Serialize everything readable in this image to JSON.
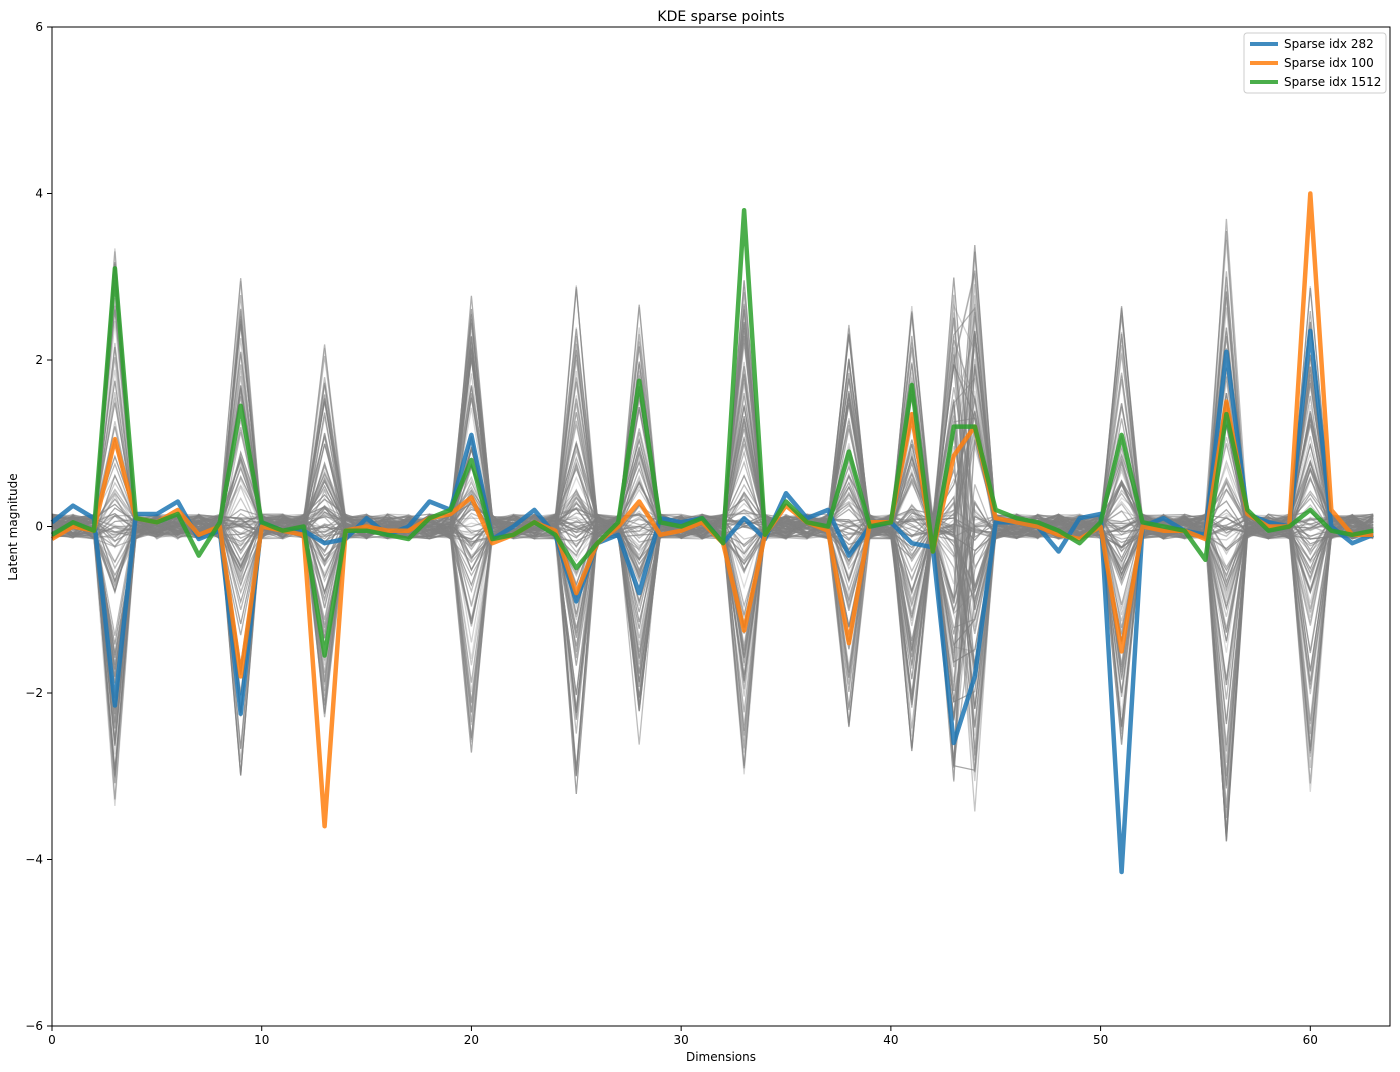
{
  "chart_data": {
    "type": "line",
    "title": "KDE sparse points",
    "xlabel": "Dimensions",
    "ylabel": "Latent magnitude",
    "xlim": [
      0,
      63.8
    ],
    "ylim": [
      -6,
      6
    ],
    "x_ticks": [
      0,
      10,
      20,
      30,
      40,
      50,
      60
    ],
    "y_ticks": [
      -6,
      -4,
      -2,
      0,
      2,
      4,
      6
    ],
    "grid": false,
    "legend_position": "top-right",
    "background_color": "#808080",
    "background_spike_dims": [
      3,
      9,
      13,
      20,
      25,
      28,
      33,
      38,
      41,
      43,
      44,
      51,
      56,
      60
    ],
    "background_spike_scales": [
      3.4,
      3.0,
      2.3,
      2.8,
      3.3,
      2.7,
      3.0,
      2.5,
      2.7,
      3.1,
      3.5,
      2.7,
      3.8,
      3.2
    ],
    "series": [
      {
        "name": "Sparse idx 282",
        "color": "#1f77b4",
        "values": [
          0.05,
          0.25,
          0.1,
          -2.15,
          0.15,
          0.15,
          0.3,
          -0.15,
          -0.05,
          -2.25,
          0.05,
          -0.05,
          -0.05,
          -0.2,
          -0.15,
          0.1,
          -0.1,
          0.0,
          0.3,
          0.2,
          1.1,
          -0.15,
          0.0,
          0.2,
          -0.1,
          -0.9,
          -0.2,
          -0.1,
          -0.8,
          0.1,
          0.05,
          0.1,
          -0.2,
          0.1,
          -0.15,
          0.4,
          0.1,
          0.2,
          -0.35,
          0.0,
          0.05,
          -0.2,
          -0.25,
          -2.6,
          -1.8,
          0.05,
          0.05,
          0.0,
          -0.3,
          0.1,
          0.15,
          -4.15,
          0.0,
          0.1,
          -0.05,
          -0.1,
          2.1,
          0.15,
          0.05,
          0.0,
          2.35,
          0.0,
          -0.2,
          -0.1
        ]
      },
      {
        "name": "Sparse idx 100",
        "color": "#ff7f0e",
        "values": [
          -0.15,
          0.0,
          -0.05,
          1.05,
          0.1,
          0.05,
          0.2,
          -0.1,
          0.0,
          -1.8,
          0.0,
          -0.05,
          -0.1,
          -3.6,
          -0.05,
          0.0,
          -0.05,
          -0.05,
          0.1,
          0.15,
          0.35,
          -0.2,
          -0.1,
          0.05,
          -0.05,
          -0.8,
          -0.2,
          0.0,
          0.3,
          -0.1,
          -0.05,
          0.05,
          -0.2,
          -1.25,
          -0.1,
          0.25,
          0.05,
          -0.05,
          -1.4,
          0.05,
          0.05,
          1.35,
          -0.3,
          0.85,
          1.2,
          0.1,
          0.05,
          0.0,
          -0.1,
          -0.15,
          0.0,
          -1.5,
          0.0,
          -0.05,
          -0.05,
          -0.15,
          1.5,
          0.15,
          0.0,
          0.0,
          4.0,
          0.2,
          -0.1,
          -0.1
        ]
      },
      {
        "name": "Sparse idx 1512",
        "color": "#2ca02c",
        "values": [
          -0.1,
          0.05,
          -0.05,
          3.1,
          0.1,
          0.05,
          0.15,
          -0.35,
          0.05,
          1.45,
          0.05,
          -0.05,
          0.0,
          -1.55,
          -0.05,
          -0.05,
          -0.1,
          -0.15,
          0.1,
          0.2,
          0.8,
          -0.15,
          -0.1,
          0.05,
          -0.1,
          -0.5,
          -0.2,
          0.05,
          1.75,
          0.05,
          0.0,
          0.1,
          -0.2,
          3.8,
          -0.1,
          0.3,
          0.05,
          0.0,
          0.9,
          0.0,
          0.05,
          1.7,
          -0.3,
          1.2,
          1.2,
          0.2,
          0.1,
          0.05,
          -0.05,
          -0.2,
          0.05,
          1.1,
          0.05,
          0.0,
          -0.05,
          -0.4,
          1.35,
          0.2,
          -0.05,
          0.0,
          0.2,
          -0.05,
          -0.1,
          -0.05
        ]
      }
    ]
  }
}
